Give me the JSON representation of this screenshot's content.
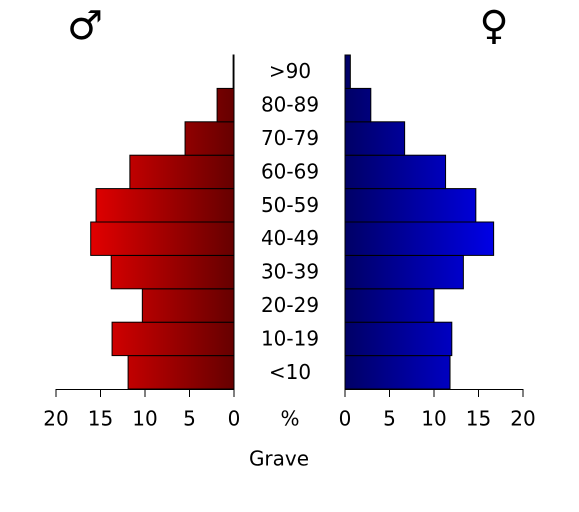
{
  "chart_data": {
    "type": "pyramid",
    "title": "Grave",
    "xlabel": "%",
    "categories": [
      "<10",
      "10-19",
      "20-29",
      "30-39",
      "40-49",
      "50-59",
      "60-69",
      "70-79",
      "80-89",
      ">90"
    ],
    "series": [
      {
        "name": "♂",
        "color": "#ff0000",
        "values": [
          11.9,
          13.7,
          10.3,
          13.8,
          16.1,
          15.5,
          11.7,
          5.5,
          1.9,
          0.1
        ]
      },
      {
        "name": "♀",
        "color": "#0000ff",
        "values": [
          11.8,
          12.0,
          10.0,
          13.3,
          16.7,
          14.7,
          11.3,
          6.7,
          2.9,
          0.6
        ]
      }
    ],
    "xlim": [
      0,
      20
    ],
    "xticks": [
      0,
      5,
      10,
      15,
      20
    ]
  }
}
